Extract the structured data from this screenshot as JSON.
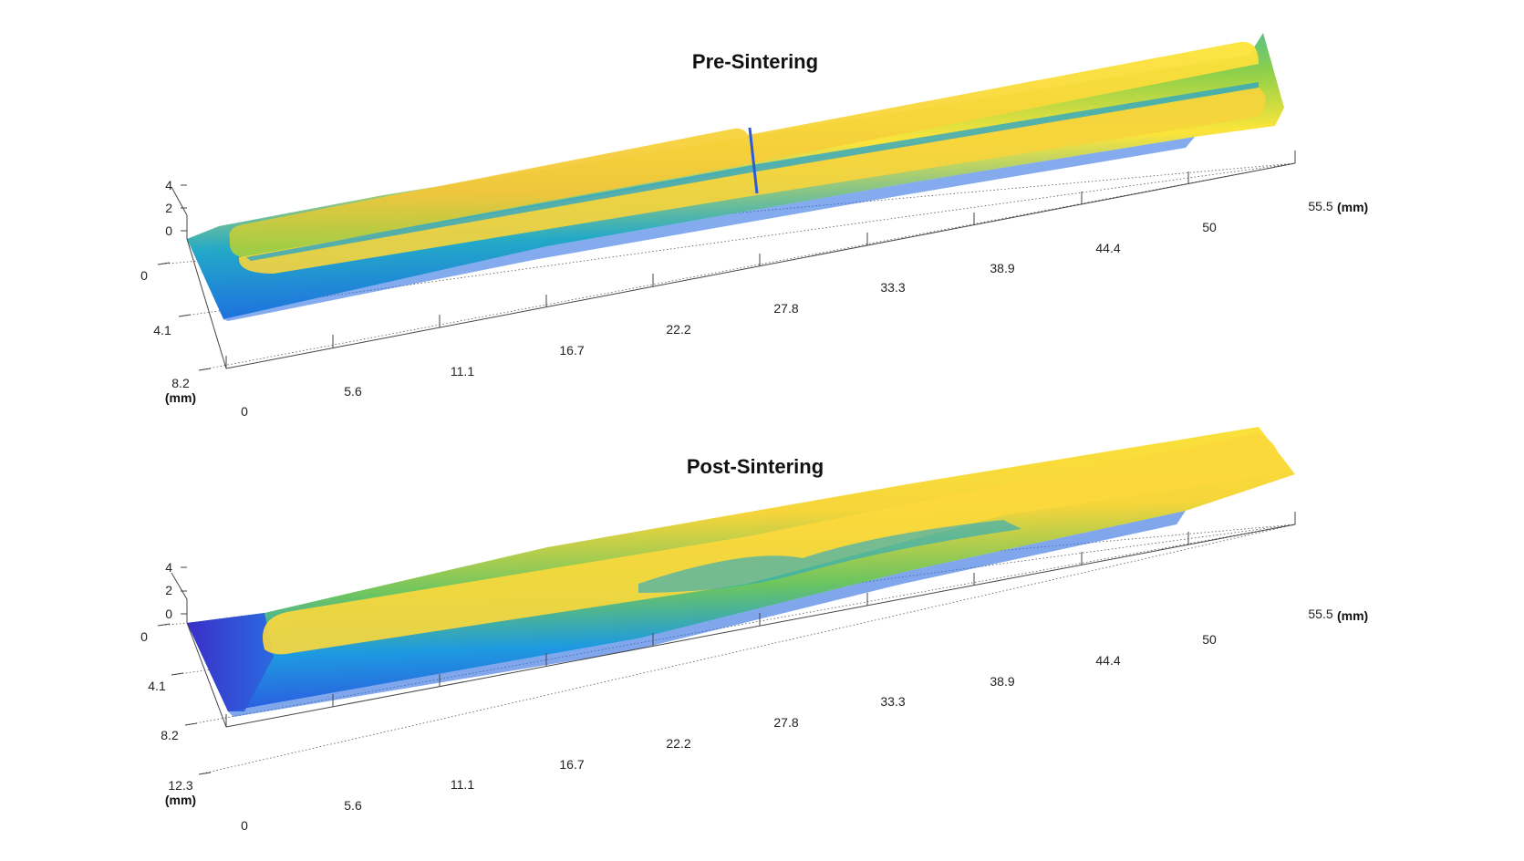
{
  "figure": {
    "colors": {
      "low": "#3a2fc8",
      "mid_low": "#1e8ae0",
      "mid": "#23b8b0",
      "mid_high": "#8ed04a",
      "high": "#fde53a"
    }
  },
  "chart_data": [
    {
      "type": "surface",
      "title": "Pre-Sintering",
      "x_axis": {
        "ticks": [
          "0",
          "5.6",
          "11.1",
          "16.7",
          "22.2",
          "27.8",
          "33.3",
          "38.9",
          "44.4",
          "50",
          "55.5"
        ],
        "unit": "(mm)",
        "range": [
          0,
          55.5
        ]
      },
      "y_axis": {
        "ticks": [
          "0",
          "4.1",
          "8.2"
        ],
        "unit": "(mm)",
        "range": [
          0,
          8.2
        ]
      },
      "z_axis": {
        "ticks": [
          "0",
          "2",
          "4"
        ],
        "range": [
          0,
          4
        ]
      },
      "features": "two parallel raised tracks (high, yellow) on a lower substrate (blue-green), tracks start near x=1 and end near x=54"
    },
    {
      "type": "surface",
      "title": "Post-Sintering",
      "x_axis": {
        "ticks": [
          "0",
          "5.6",
          "11.1",
          "16.7",
          "22.2",
          "27.8",
          "33.3",
          "38.9",
          "44.4",
          "50",
          "55.5"
        ],
        "unit": "(mm)",
        "range": [
          0,
          55.5
        ]
      },
      "y_axis": {
        "ticks": [
          "0",
          "4.1",
          "8.2",
          "12.3"
        ],
        "unit": "(mm)",
        "range": [
          0,
          12.3
        ]
      },
      "z_axis": {
        "ticks": [
          "0",
          "2",
          "4"
        ],
        "range": [
          0,
          4
        ]
      },
      "features": "merged broad raised tracks (yellow) over a lower substrate; low dark-blue region near x=0"
    }
  ]
}
